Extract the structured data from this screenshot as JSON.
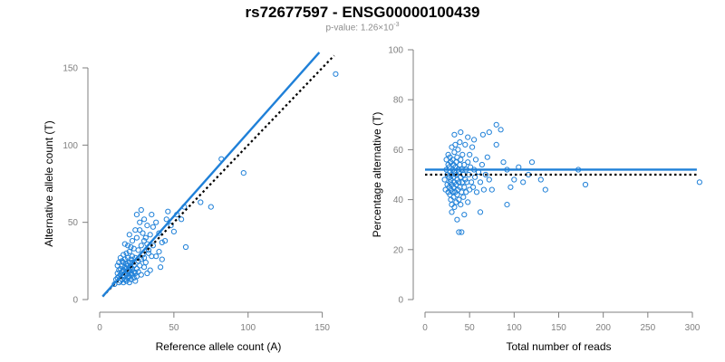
{
  "title": "rs72677597 - ENSG00000100439",
  "subtitle": {
    "prefix": "p-value: 1.26×10",
    "exponent": "-3"
  },
  "colors": {
    "accent": "#1f80d8",
    "axis": "#7f7f7f",
    "null_line": "#000000"
  },
  "chart_data": [
    {
      "type": "scatter",
      "xlabel": "Reference allele count (A)",
      "ylabel": "Alternative allele count (T)",
      "xlim": [
        0,
        160
      ],
      "ylim": [
        0,
        150
      ],
      "xticks": [
        0,
        50,
        100,
        150
      ],
      "yticks": [
        0,
        50,
        100,
        150
      ],
      "fit_line": {
        "x": [
          2,
          148
        ],
        "y": [
          2,
          160
        ]
      },
      "null_line": {
        "x": [
          2,
          158
        ],
        "y": [
          2,
          158
        ]
      },
      "points": [
        [
          10,
          10
        ],
        [
          11,
          13
        ],
        [
          12,
          14
        ],
        [
          12,
          17
        ],
        [
          13,
          11
        ],
        [
          13,
          15
        ],
        [
          13,
          19
        ],
        [
          14,
          12
        ],
        [
          14,
          16
        ],
        [
          14,
          20
        ],
        [
          15,
          13
        ],
        [
          15,
          18
        ],
        [
          15,
          22
        ],
        [
          16,
          11
        ],
        [
          16,
          15
        ],
        [
          16,
          19
        ],
        [
          16,
          24
        ],
        [
          17,
          13
        ],
        [
          17,
          17
        ],
        [
          17,
          21
        ],
        [
          17,
          26
        ],
        [
          18,
          12
        ],
        [
          18,
          16
        ],
        [
          18,
          20
        ],
        [
          18,
          23
        ],
        [
          19,
          14
        ],
        [
          19,
          18
        ],
        [
          19,
          22
        ],
        [
          19,
          27
        ],
        [
          20,
          11
        ],
        [
          20,
          15
        ],
        [
          20,
          19
        ],
        [
          20,
          24
        ],
        [
          21,
          13
        ],
        [
          21,
          17
        ],
        [
          21,
          21
        ],
        [
          21,
          26
        ],
        [
          22,
          16
        ],
        [
          22,
          20
        ],
        [
          22,
          24
        ],
        [
          23,
          14
        ],
        [
          23,
          18
        ],
        [
          23,
          22
        ],
        [
          24,
          12
        ],
        [
          24,
          17
        ],
        [
          24,
          27
        ],
        [
          25,
          15
        ],
        [
          25,
          20
        ],
        [
          26,
          18
        ],
        [
          26,
          25
        ],
        [
          27,
          22
        ],
        [
          28,
          16
        ],
        [
          28,
          26
        ],
        [
          29,
          29
        ],
        [
          30,
          21
        ],
        [
          31,
          24
        ],
        [
          32,
          17
        ],
        [
          33,
          30
        ],
        [
          34,
          19
        ],
        [
          35,
          28
        ],
        [
          14,
          27
        ],
        [
          15,
          25
        ],
        [
          16,
          29
        ],
        [
          18,
          30
        ],
        [
          20,
          31
        ],
        [
          22,
          28
        ],
        [
          12,
          22
        ],
        [
          13,
          24
        ],
        [
          19,
          35
        ],
        [
          21,
          34
        ],
        [
          23,
          33
        ],
        [
          17,
          36
        ],
        [
          25,
          40
        ],
        [
          27,
          45
        ],
        [
          28,
          58
        ],
        [
          30,
          52
        ],
        [
          32,
          48
        ],
        [
          35,
          55
        ],
        [
          36,
          47
        ],
        [
          38,
          50
        ],
        [
          40,
          43
        ],
        [
          42,
          37
        ],
        [
          44,
          38
        ],
        [
          45,
          52
        ],
        [
          46,
          57
        ],
        [
          48,
          48
        ],
        [
          50,
          44
        ],
        [
          52,
          55
        ],
        [
          55,
          52
        ],
        [
          57,
          60
        ],
        [
          58,
          34
        ],
        [
          28,
          35
        ],
        [
          30,
          38
        ],
        [
          33,
          32
        ],
        [
          36,
          35
        ],
        [
          40,
          31
        ],
        [
          25,
          55
        ],
        [
          27,
          50
        ],
        [
          29,
          43
        ],
        [
          31,
          40
        ],
        [
          34,
          42
        ],
        [
          38,
          28
        ],
        [
          42,
          26
        ],
        [
          24,
          45
        ],
        [
          22,
          38
        ],
        [
          26,
          32
        ],
        [
          30,
          27
        ],
        [
          32,
          36
        ],
        [
          20,
          42
        ],
        [
          41,
          21
        ],
        [
          68,
          63
        ],
        [
          75,
          60
        ],
        [
          82,
          91
        ],
        [
          97,
          82
        ],
        [
          159,
          146
        ]
      ]
    },
    {
      "type": "scatter",
      "xlabel": "Total number of reads",
      "ylabel": "Percentage alternative (T)",
      "xlim": [
        0,
        300
      ],
      "ylim": [
        0,
        100
      ],
      "xticks": [
        0,
        50,
        100,
        150,
        200,
        250,
        300
      ],
      "yticks": [
        0,
        20,
        40,
        60,
        80,
        100
      ],
      "fit_line": {
        "x": [
          0,
          305
        ],
        "y": [
          52,
          52
        ]
      },
      "null_line": {
        "x": [
          0,
          305
        ],
        "y": [
          50,
          50
        ]
      },
      "points": [
        [
          22,
          48
        ],
        [
          23,
          44
        ],
        [
          24,
          52
        ],
        [
          24,
          56
        ],
        [
          25,
          46
        ],
        [
          25,
          50
        ],
        [
          26,
          43
        ],
        [
          26,
          54
        ],
        [
          26,
          58
        ],
        [
          27,
          45
        ],
        [
          27,
          49
        ],
        [
          27,
          53
        ],
        [
          28,
          42
        ],
        [
          28,
          47
        ],
        [
          28,
          51
        ],
        [
          28,
          57
        ],
        [
          29,
          40
        ],
        [
          29,
          44
        ],
        [
          29,
          48
        ],
        [
          29,
          55
        ],
        [
          30,
          38
        ],
        [
          30,
          46
        ],
        [
          30,
          50
        ],
        [
          30,
          61
        ],
        [
          31,
          43
        ],
        [
          31,
          52
        ],
        [
          31,
          56
        ],
        [
          32,
          41
        ],
        [
          32,
          45
        ],
        [
          32,
          49
        ],
        [
          32,
          54
        ],
        [
          33,
          37
        ],
        [
          33,
          47
        ],
        [
          33,
          51
        ],
        [
          33,
          59
        ],
        [
          34,
          43
        ],
        [
          34,
          53
        ],
        [
          34,
          62
        ],
        [
          35,
          39
        ],
        [
          35,
          46
        ],
        [
          35,
          50
        ],
        [
          35,
          55
        ],
        [
          36,
          42
        ],
        [
          36,
          48
        ],
        [
          36,
          57
        ],
        [
          37,
          44
        ],
        [
          37,
          52
        ],
        [
          37,
          60
        ],
        [
          38,
          40
        ],
        [
          38,
          47
        ],
        [
          38,
          51
        ],
        [
          39,
          45
        ],
        [
          39,
          54
        ],
        [
          39,
          63
        ],
        [
          40,
          38
        ],
        [
          40,
          49
        ],
        [
          40,
          56
        ],
        [
          41,
          43
        ],
        [
          41,
          52
        ],
        [
          42,
          47
        ],
        [
          42,
          58
        ],
        [
          43,
          41
        ],
        [
          43,
          50
        ],
        [
          44,
          45
        ],
        [
          44,
          54
        ],
        [
          45,
          48
        ],
        [
          45,
          62
        ],
        [
          46,
          43
        ],
        [
          46,
          52
        ],
        [
          47,
          47
        ],
        [
          48,
          39
        ],
        [
          48,
          55
        ],
        [
          49,
          50
        ],
        [
          50,
          44
        ],
        [
          50,
          58
        ],
        [
          51,
          53
        ],
        [
          52,
          47
        ],
        [
          53,
          61
        ],
        [
          54,
          45
        ],
        [
          55,
          52
        ],
        [
          56,
          49
        ],
        [
          57,
          56
        ],
        [
          58,
          43
        ],
        [
          60,
          51
        ],
        [
          62,
          47
        ],
        [
          64,
          54
        ],
        [
          66,
          44
        ],
        [
          68,
          50
        ],
        [
          70,
          57
        ],
        [
          72,
          48
        ],
        [
          36,
          32
        ],
        [
          38,
          27
        ],
        [
          41,
          27
        ],
        [
          44,
          34
        ],
        [
          30,
          35
        ],
        [
          33,
          66
        ],
        [
          40,
          67
        ],
        [
          48,
          65
        ],
        [
          55,
          64
        ],
        [
          65,
          66
        ],
        [
          72,
          67
        ],
        [
          80,
          70
        ],
        [
          85,
          68
        ],
        [
          80,
          62
        ],
        [
          88,
          55
        ],
        [
          92,
          52
        ],
        [
          96,
          45
        ],
        [
          100,
          48
        ],
        [
          105,
          53
        ],
        [
          110,
          47
        ],
        [
          116,
          50
        ],
        [
          120,
          55
        ],
        [
          130,
          48
        ],
        [
          135,
          44
        ],
        [
          75,
          44
        ],
        [
          62,
          35
        ],
        [
          92,
          38
        ],
        [
          172,
          52
        ],
        [
          180,
          46
        ],
        [
          308,
          47
        ]
      ]
    }
  ]
}
